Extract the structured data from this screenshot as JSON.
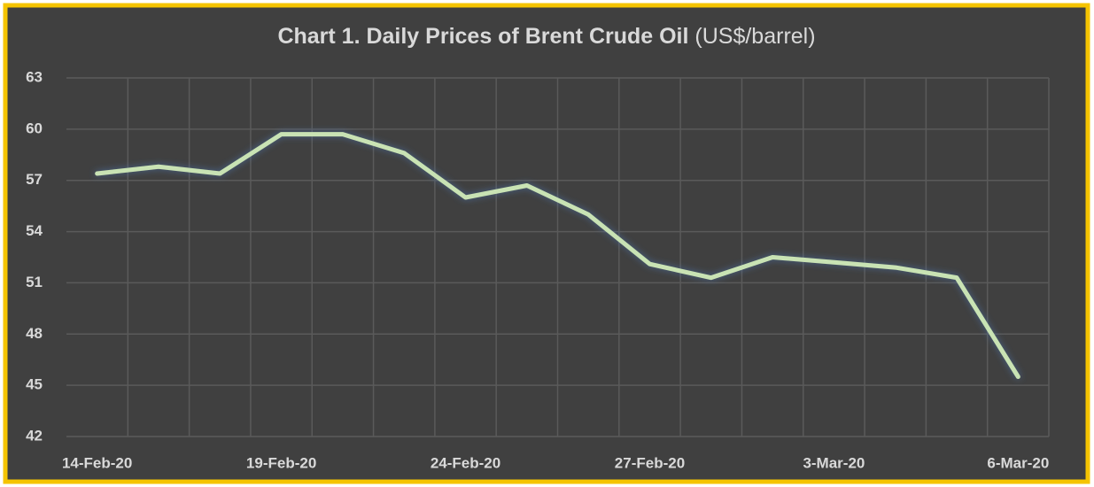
{
  "chart_data": {
    "type": "line",
    "title": "Chart 1. Daily Prices of Brent Crude Oil",
    "subtitle": "(US$/barrel)",
    "categories": [
      "14-Feb-20",
      null,
      null,
      "19-Feb-20",
      null,
      null,
      "24-Feb-20",
      null,
      null,
      "27-Feb-20",
      null,
      null,
      "3-Mar-20",
      null,
      null,
      "6-Mar-20"
    ],
    "series": [
      {
        "name": "Brent",
        "color": "#c9e3b4",
        "values": [
          57.4,
          57.8,
          57.4,
          59.7,
          59.7,
          58.6,
          56.0,
          56.7,
          55.0,
          52.1,
          51.3,
          52.5,
          52.2,
          51.9,
          51.3,
          45.5
        ]
      }
    ],
    "ylim": [
      42,
      63
    ],
    "yticks": [
      42,
      45,
      48,
      51,
      54,
      57,
      60,
      63
    ],
    "grid": true
  }
}
